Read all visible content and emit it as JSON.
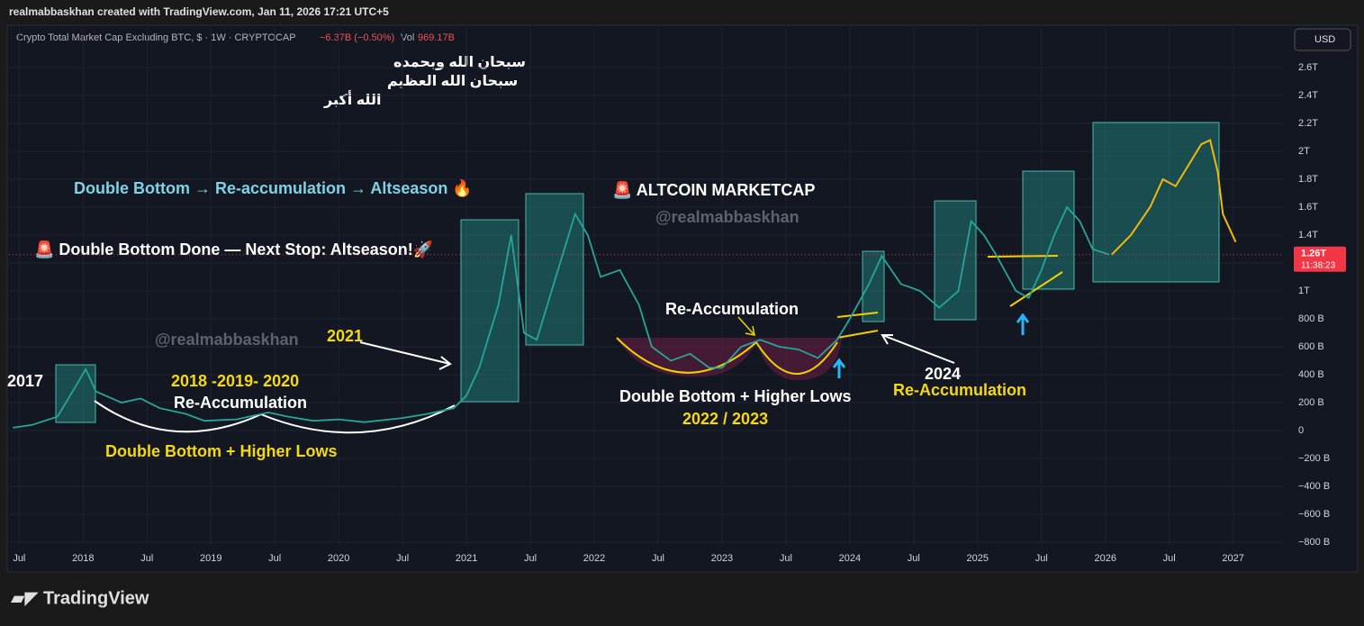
{
  "header": "realmabbaskhan created with TradingView.com, Jan 11, 2026 17:21 UTC+5",
  "symbol": "Crypto Total Market Cap Excluding BTC, $ · 1W · CRYPTOCAP",
  "change": "−6.37B (−0.50%)",
  "volume_label": "Vol",
  "volume": "969.17B",
  "currency": "USD",
  "arabic": [
    "سبحان الله وبحمده",
    "سبحان الله العظيم",
    "الله أكبر"
  ],
  "annotations": [
    "Double Bottom → Re-accumulation → Altseason 🔥",
    "🚨 Double Bottom Done — Next Stop: Altseason!🚀",
    "🚨 ALTCOIN MARKETCAP",
    "@realmabbaskhan",
    "@realmabbaskhan",
    "2021",
    "2017",
    "2018 -2019- 2020",
    "Re-Accumulation",
    "Double Bottom + Higher Lows",
    "Re-Accumulation",
    "Double Bottom + Higher Lows",
    "2022 / 2023",
    "2024",
    "Re-Accumulation"
  ],
  "footer": "TradingView",
  "chart_data": {
    "type": "line",
    "x": [
      2017.45,
      2017.6,
      2017.8,
      2017.95,
      2018.02,
      2018.1,
      2018.3,
      2018.45,
      2018.6,
      2018.8,
      2018.95,
      2019.2,
      2019.45,
      2019.6,
      2019.8,
      2020.0,
      2020.2,
      2020.5,
      2020.7,
      2020.9,
      2021.0,
      2021.1,
      2021.25,
      2021.35,
      2021.45,
      2021.55,
      2021.7,
      2021.85,
      2021.95,
      2022.05,
      2022.2,
      2022.35,
      2022.45,
      2022.6,
      2022.75,
      2022.9,
      2023.0,
      2023.15,
      2023.3,
      2023.45,
      2023.6,
      2023.75,
      2023.9,
      2024.0,
      2024.15,
      2024.25,
      2024.4,
      2024.55,
      2024.7,
      2024.85,
      2024.95,
      2025.05,
      2025.15,
      2025.3,
      2025.4,
      2025.5,
      2025.6,
      2025.7,
      2025.8,
      2025.9,
      2026.03
    ],
    "values": [
      20,
      40,
      100,
      330,
      440,
      280,
      200,
      230,
      160,
      120,
      70,
      80,
      130,
      100,
      70,
      80,
      60,
      90,
      120,
      160,
      250,
      450,
      900,
      1400,
      700,
      650,
      1100,
      1550,
      1400,
      1100,
      1150,
      900,
      600,
      500,
      550,
      450,
      450,
      600,
      650,
      600,
      580,
      520,
      650,
      800,
      1050,
      1250,
      1050,
      1000,
      880,
      1000,
      1500,
      1400,
      1250,
      1000,
      950,
      1150,
      1400,
      1600,
      1500,
      1300,
      1260
    ],
    "color": "#26a69a",
    "projection": {
      "x": [
        2026.05,
        2026.2,
        2026.35,
        2026.45,
        2026.55,
        2026.65,
        2026.75,
        2026.82,
        2026.88,
        2026.92,
        2026.97,
        2027.02
      ],
      "values": [
        1260,
        1400,
        1600,
        1800,
        1750,
        1900,
        2050,
        2080,
        1850,
        1550,
        1450,
        1350
      ],
      "color": "#f0b90b"
    },
    "price": {
      "value": 1260,
      "label": "1.26T"
    },
    "price_time": "11:38:23",
    "xlim": [
      2017.42,
      2027.39
    ],
    "xticks": [
      {
        "value": 2017.5,
        "label": "Jul"
      },
      2018,
      {
        "value": 2018.5,
        "label": "Jul"
      },
      2019,
      {
        "value": 2019.5,
        "label": "Jul"
      },
      2020,
      {
        "value": 2020.5,
        "label": "Jul"
      },
      2021,
      {
        "value": 2021.5,
        "label": "Jul"
      },
      2022,
      {
        "value": 2022.5,
        "label": "Jul"
      },
      2023,
      {
        "value": 2023.5,
        "label": "Jul"
      },
      2024,
      {
        "value": 2024.5,
        "label": "Jul"
      },
      2025,
      {
        "value": 2025.5,
        "label": "Jul"
      },
      2026,
      {
        "value": 2026.5,
        "label": "Jul"
      },
      2027
    ],
    "ylim": [
      -819,
      2890
    ],
    "yticks": [
      {
        "value": -800,
        "label": "−800 B"
      },
      {
        "value": -600,
        "label": "−600 B"
      },
      {
        "value": -400,
        "label": "−400 B"
      },
      {
        "value": -200,
        "label": "−200 B"
      },
      0,
      {
        "value": 200,
        "label": "200 B"
      },
      {
        "value": 400,
        "label": "400 B"
      },
      {
        "value": 600,
        "label": "600 B"
      },
      {
        "value": 800,
        "label": "800 B"
      },
      {
        "value": 1000,
        "label": "1T"
      },
      {
        "value": 1200,
        "label": "1.2T"
      },
      {
        "value": 1400,
        "label": "1.4T"
      },
      {
        "value": 1600,
        "label": "1.6T"
      },
      {
        "value": 1800,
        "label": "1.8T"
      },
      {
        "value": 2000,
        "label": "2T"
      },
      {
        "value": 2200,
        "label": "2.2T"
      },
      {
        "value": 2400,
        "label": "2.4T"
      },
      {
        "value": 2600,
        "label": "2.6T"
      }
    ],
    "grid": true
  }
}
